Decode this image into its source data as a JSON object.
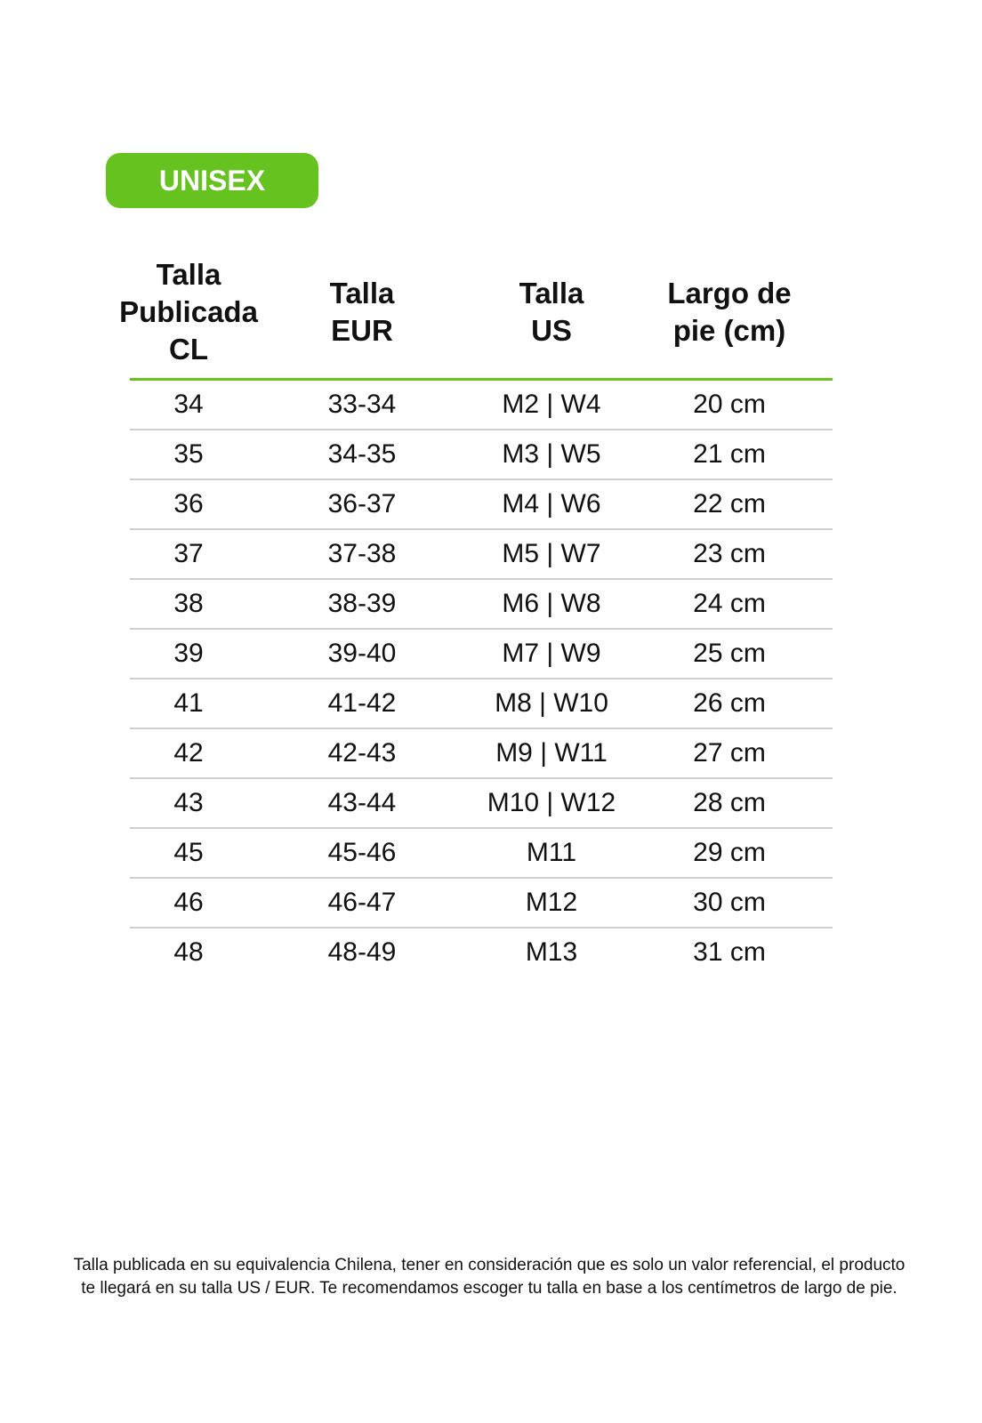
{
  "badge": {
    "label": "UNISEX",
    "color": "#66c21f"
  },
  "table": {
    "headers": [
      "Talla\nPublicada\nCL",
      "Talla\nEUR",
      "Talla\nUS",
      "Largo de\npie (cm)"
    ],
    "rows": [
      [
        "34",
        "33-34",
        "M2 | W4",
        "20 cm"
      ],
      [
        "35",
        "34-35",
        "M3 | W5",
        "21 cm"
      ],
      [
        "36",
        "36-37",
        "M4 | W6",
        "22 cm"
      ],
      [
        "37",
        "37-38",
        "M5 | W7",
        "23 cm"
      ],
      [
        "38",
        "38-39",
        "M6 | W8",
        "24 cm"
      ],
      [
        "39",
        "39-40",
        "M7 | W9",
        "25 cm"
      ],
      [
        "41",
        "41-42",
        "M8 | W10",
        "26 cm"
      ],
      [
        "42",
        "42-43",
        "M9 | W11",
        "27 cm"
      ],
      [
        "43",
        "43-44",
        "M10 | W12",
        "28 cm"
      ],
      [
        "45",
        "45-46",
        "M11",
        "29 cm"
      ],
      [
        "46",
        "46-47",
        "M12",
        "30 cm"
      ],
      [
        "48",
        "48-49",
        "M13",
        "31 cm"
      ]
    ]
  },
  "note": {
    "line1": "Talla publicada en su equivalencia Chilena, tener en consideración que es solo un valor referencial, el producto",
    "line2": "te llegará en su talla US / EUR. Te recomendamos escoger tu talla en base a los centímetros de largo de pie."
  }
}
